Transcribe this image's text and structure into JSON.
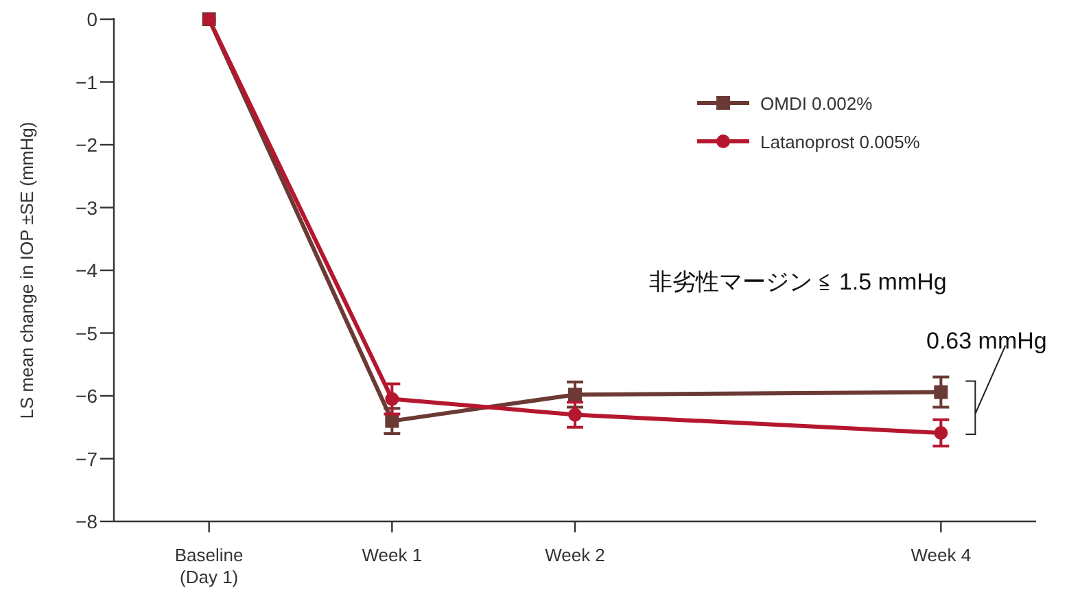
{
  "chart_data": {
    "type": "line",
    "ylabel": "LS mean change in IOP ±SE (mmHg)",
    "categories": [
      "Baseline (Day 1)",
      "Week 1",
      "Week 2",
      null,
      "Week 4"
    ],
    "ylim": [
      -8,
      0
    ],
    "yticks": [
      -8,
      -7,
      -6,
      -5,
      -4,
      -3,
      -2,
      -1,
      0
    ],
    "series": [
      {
        "name": "OMDI 0.002%",
        "color": "#6b3a35",
        "marker": "square",
        "values": [
          0,
          -6.4,
          -5.98,
          null,
          -5.94
        ],
        "errors": [
          null,
          0.2,
          0.2,
          null,
          0.24
        ]
      },
      {
        "name": "Latanoprost 0.005%",
        "color": "#b5172f",
        "marker": "circle",
        "values": [
          0,
          -6.05,
          -6.3,
          null,
          -6.59
        ],
        "errors": [
          null,
          0.24,
          0.2,
          null,
          0.21
        ]
      }
    ],
    "legend": "top right",
    "grid": false,
    "annotations": [
      "非劣性マージン ≦ 1.5 mmHg",
      "0.63 mmHg"
    ]
  }
}
